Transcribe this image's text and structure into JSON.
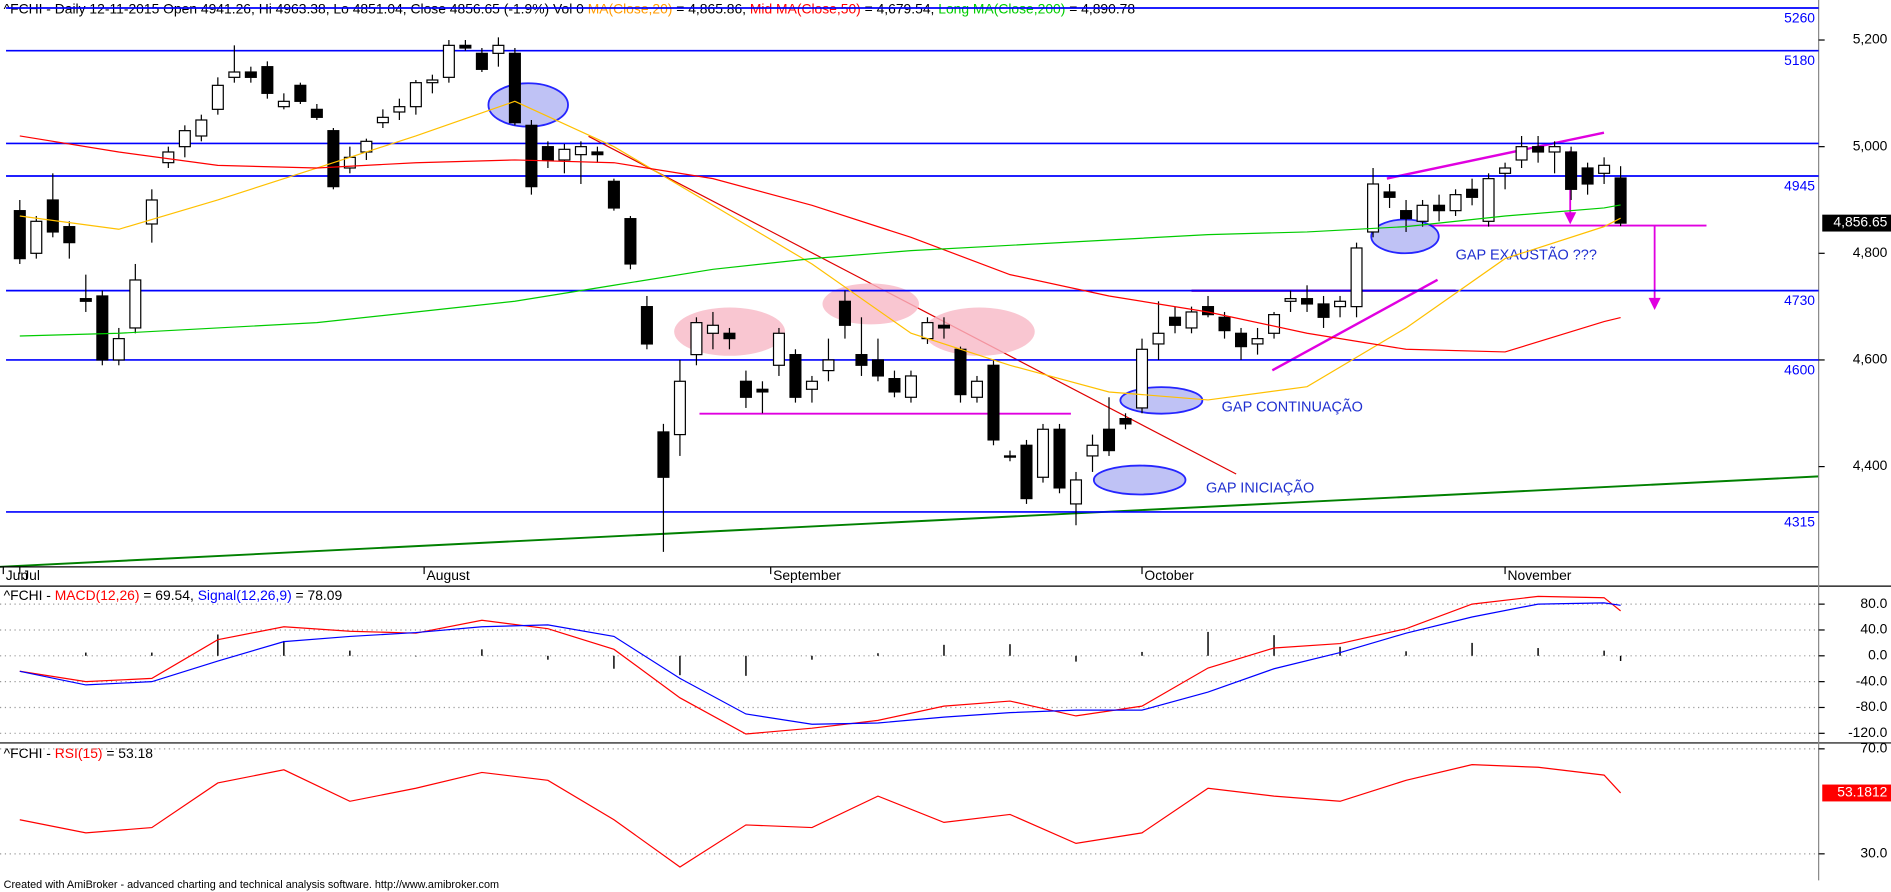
{
  "chart_data": [
    {
      "type": "candlestick",
      "title_parts": [
        {
          "text": "^FCHI - Daily 12-11-2015 Open 4941.26, Hi 4963.38, Lo 4851.04, Close 4856.65 (-1.9%) Vol 0 ",
          "color": "#000000"
        },
        {
          "text": "MA(Close,20)",
          "color": "#ff9900"
        },
        {
          "text": " = 4,865.86, ",
          "color": "#000000"
        },
        {
          "text": "Mid MA(Close,50)",
          "color": "#ff0000"
        },
        {
          "text": " = 4,679.54, ",
          "color": "#000000"
        },
        {
          "text": "Long MA(Close,200)",
          "color": "#00cc00"
        },
        {
          "text": " = 4,890.78",
          "color": "#000000"
        }
      ],
      "ohlc": [
        [
          4880,
          4900,
          4780,
          4790
        ],
        [
          4800,
          4870,
          4790,
          4860
        ],
        [
          4900,
          4950,
          4830,
          4840
        ],
        [
          4850,
          4860,
          4790,
          4820
        ],
        [
          4715,
          4760,
          4690,
          4710
        ],
        [
          4720,
          4730,
          4590,
          4600
        ],
        [
          4600,
          4660,
          4590,
          4640
        ],
        [
          4660,
          4780,
          4650,
          4750
        ],
        [
          4855,
          4920,
          4820,
          4900
        ],
        [
          4970,
          5000,
          4960,
          4990
        ],
        [
          5000,
          5040,
          4980,
          5030
        ],
        [
          5020,
          5060,
          5010,
          5050
        ],
        [
          5070,
          5130,
          5060,
          5115
        ],
        [
          5130,
          5190,
          5120,
          5140
        ],
        [
          5140,
          5150,
          5120,
          5130
        ],
        [
          5150,
          5160,
          5090,
          5100
        ],
        [
          5075,
          5100,
          5070,
          5085
        ],
        [
          5115,
          5120,
          5080,
          5085
        ],
        [
          5070,
          5080,
          5050,
          5055
        ],
        [
          5030,
          5035,
          4920,
          4925
        ],
        [
          4960,
          5000,
          4950,
          4980
        ],
        [
          4990,
          5015,
          4975,
          5010
        ],
        [
          5045,
          5070,
          5035,
          5055
        ],
        [
          5065,
          5090,
          5050,
          5075
        ],
        [
          5075,
          5125,
          5060,
          5120
        ],
        [
          5120,
          5135,
          5100,
          5125
        ],
        [
          5130,
          5200,
          5120,
          5190
        ],
        [
          5190,
          5200,
          5180,
          5185
        ],
        [
          5175,
          5185,
          5140,
          5145
        ],
        [
          5175,
          5205,
          5150,
          5190
        ],
        [
          5175,
          5185,
          5040,
          5045
        ],
        [
          5040,
          5050,
          4910,
          4925
        ],
        [
          5000,
          5010,
          4960,
          4975
        ],
        [
          4975,
          5005,
          4950,
          4995
        ],
        [
          4985,
          5010,
          4930,
          5000
        ],
        [
          4990,
          5000,
          4970,
          4985
        ],
        [
          4935,
          4940,
          4880,
          4885
        ],
        [
          4865,
          4870,
          4770,
          4780
        ],
        [
          4700,
          4720,
          4620,
          4630
        ],
        [
          4465,
          4480,
          4240,
          4380
        ],
        [
          4460,
          4600,
          4420,
          4560
        ],
        [
          4610,
          4680,
          4590,
          4670
        ],
        [
          4650,
          4690,
          4620,
          4665
        ],
        [
          4650,
          4660,
          4620,
          4640
        ],
        [
          4560,
          4580,
          4510,
          4530
        ],
        [
          4545,
          4560,
          4500,
          4540
        ],
        [
          4590,
          4660,
          4570,
          4650
        ],
        [
          4610,
          4620,
          4520,
          4530
        ],
        [
          4545,
          4570,
          4520,
          4560
        ],
        [
          4580,
          4640,
          4560,
          4600
        ],
        [
          4710,
          4730,
          4640,
          4665
        ],
        [
          4610,
          4680,
          4570,
          4590
        ],
        [
          4600,
          4640,
          4560,
          4570
        ],
        [
          4565,
          4580,
          4530,
          4540
        ],
        [
          4530,
          4580,
          4520,
          4570
        ],
        [
          4640,
          4680,
          4630,
          4670
        ],
        [
          4665,
          4680,
          4640,
          4660
        ],
        [
          4620,
          4625,
          4520,
          4535
        ],
        [
          4530,
          4570,
          4520,
          4560
        ],
        [
          4590,
          4600,
          4440,
          4450
        ],
        [
          4420,
          4430,
          4410,
          4420
        ],
        [
          4440,
          4450,
          4330,
          4340
        ],
        [
          4380,
          4480,
          4370,
          4470
        ],
        [
          4470,
          4480,
          4350,
          4360
        ],
        [
          4330,
          4390,
          4290,
          4375
        ],
        [
          4420,
          4460,
          4390,
          4440
        ],
        [
          4470,
          4530,
          4420,
          4430
        ],
        [
          4490,
          4500,
          4470,
          4480
        ],
        [
          4510,
          4640,
          4500,
          4620
        ],
        [
          4630,
          4710,
          4600,
          4650
        ],
        [
          4680,
          4700,
          4650,
          4665
        ],
        [
          4660,
          4700,
          4650,
          4690
        ],
        [
          4700,
          4720,
          4680,
          4685
        ],
        [
          4680,
          4690,
          4640,
          4655
        ],
        [
          4650,
          4660,
          4600,
          4625
        ],
        [
          4630,
          4660,
          4610,
          4640
        ],
        [
          4650,
          4690,
          4640,
          4685
        ],
        [
          4710,
          4730,
          4690,
          4715
        ],
        [
          4715,
          4740,
          4690,
          4705
        ],
        [
          4705,
          4720,
          4660,
          4680
        ],
        [
          4700,
          4720,
          4680,
          4710
        ],
        [
          4700,
          4820,
          4680,
          4810
        ],
        [
          4840,
          4960,
          4830,
          4930
        ],
        [
          4915,
          4930,
          4885,
          4905
        ],
        [
          4880,
          4900,
          4840,
          4865
        ],
        [
          4860,
          4900,
          4850,
          4890
        ],
        [
          4890,
          4910,
          4860,
          4880
        ],
        [
          4880,
          4920,
          4870,
          4910
        ],
        [
          4920,
          4940,
          4890,
          4905
        ],
        [
          4860,
          4950,
          4850,
          4940
        ],
        [
          4950,
          4970,
          4920,
          4960
        ],
        [
          4975,
          5020,
          4960,
          5000
        ],
        [
          5000,
          5020,
          4970,
          4990
        ],
        [
          4990,
          5010,
          4950,
          5000
        ],
        [
          4990,
          5000,
          4900,
          4920
        ],
        [
          4960,
          4970,
          4910,
          4930
        ],
        [
          4950,
          4980,
          4930,
          4965
        ],
        [
          4941.26,
          4963.38,
          4851.04,
          4856.65
        ]
      ],
      "up_color": "#ffffff",
      "down_color": "#000000",
      "x": [
        0,
        6,
        12,
        18,
        24,
        30,
        36,
        42,
        48,
        54,
        60,
        66,
        72,
        78,
        84,
        90,
        96,
        97
      ],
      "series": [
        {
          "color": "#ffc000",
          "values": [
            4870,
            4845,
            4900,
            4960,
            5020,
            5085,
            5000,
            4890,
            4780,
            4650,
            4590,
            4540,
            4525,
            4550,
            4660,
            4790,
            4850,
            4865.86
          ]
        },
        {
          "color": "#ff0000",
          "values": [
            5020,
            4990,
            4965,
            4960,
            4970,
            4975,
            4970,
            4940,
            4890,
            4830,
            4760,
            4720,
            4690,
            4650,
            4620,
            4615,
            4672,
            4679.54
          ]
        },
        {
          "color": "#00cc00",
          "values": [
            4645,
            4650,
            4660,
            4670,
            4690,
            4710,
            4740,
            4770,
            4790,
            4805,
            4815,
            4825,
            4835,
            4840,
            4850,
            4870,
            4885,
            4890.78
          ]
        }
      ],
      "xlim": [
        -1.2,
        109
      ],
      "ylim": [
        4212,
        5275
      ],
      "yticks": [
        {
          "value": 5200,
          "label": "5,200"
        },
        {
          "value": 5000,
          "label": "5,000"
        },
        {
          "value": 4800,
          "label": "4,800"
        },
        {
          "value": 4600,
          "label": "4,600"
        },
        {
          "value": 4400,
          "label": "4,400"
        }
      ],
      "xticks": [
        {
          "value": -1,
          "label": "Jun"
        },
        {
          "value": 0,
          "label": "Jul"
        },
        {
          "value": 24.5,
          "label": "August"
        },
        {
          "value": 45.5,
          "label": "September"
        },
        {
          "value": 68,
          "label": "October"
        },
        {
          "value": 90,
          "label": "November"
        }
      ],
      "last_label": {
        "value": 4856.65,
        "label": "4,856.65"
      },
      "levels": [
        5260,
        5180,
        4945,
        4730,
        4600,
        4315
      ],
      "extra_levels": [
        5006
      ],
      "level_color": "#0000ff",
      "annotations": [
        "GAP EXAUSTÃO ???",
        "GAP CONTINUAÇÃO",
        "GAP INICIAÇÃO"
      ],
      "grid": false
    },
    {
      "type": "line",
      "title_parts": [
        {
          "text": "^FCHI - ",
          "color": "#000000"
        },
        {
          "text": "MACD(12,26)",
          "color": "#ff0000"
        },
        {
          "text": " = 69.54, ",
          "color": "#000000"
        },
        {
          "text": "Signal(12,26,9)",
          "color": "#0000ff"
        },
        {
          "text": " = 78.09",
          "color": "#000000"
        }
      ],
      "x": [
        0,
        4,
        8,
        12,
        16,
        20,
        24,
        28,
        32,
        36,
        40,
        44,
        48,
        52,
        56,
        60,
        64,
        68,
        72,
        76,
        80,
        84,
        88,
        92,
        96,
        97
      ],
      "series": [
        {
          "color": "#ff0000",
          "values": [
            -24,
            -40,
            -35,
            25,
            45,
            38,
            35,
            55,
            42,
            10,
            -65,
            -121,
            -112,
            -100,
            -78,
            -70,
            -93,
            -78,
            -19,
            12,
            19,
            42,
            80,
            92,
            90,
            69.54
          ]
        },
        {
          "color": "#0000ff",
          "values": [
            -24,
            -45,
            -40,
            -8,
            22,
            30,
            36,
            45,
            48,
            30,
            -35,
            -90,
            -106,
            -104,
            -95,
            -88,
            -84,
            -84,
            -56,
            -20,
            5,
            35,
            60,
            80,
            82,
            78.09
          ]
        }
      ],
      "histogram": {
        "color": "#000000",
        "values": [
          0,
          5,
          5,
          33,
          23,
          8,
          -1,
          10,
          -6,
          -20,
          -30,
          -31,
          -6,
          4,
          17,
          18,
          -9,
          6,
          37,
          32,
          14,
          7,
          20,
          12,
          8,
          -8
        ]
      },
      "ylim": [
        -133,
        106
      ],
      "yticks": [
        {
          "value": 80,
          "label": "80.0"
        },
        {
          "value": 40,
          "label": "40.0"
        },
        {
          "value": 0,
          "label": "0.0"
        },
        {
          "value": -40,
          "label": "-40.0"
        },
        {
          "value": -80,
          "label": "-80.0"
        },
        {
          "value": -120,
          "label": "-120.0"
        }
      ],
      "grid": true
    },
    {
      "type": "line",
      "title_parts": [
        {
          "text": "^FCHI - ",
          "color": "#000000"
        },
        {
          "text": "RSI(15)",
          "color": "#ff0000"
        },
        {
          "text": " = 53.18",
          "color": "#000000"
        }
      ],
      "x": [
        0,
        4,
        8,
        12,
        16,
        20,
        24,
        28,
        32,
        36,
        40,
        44,
        48,
        52,
        56,
        60,
        64,
        68,
        72,
        76,
        80,
        84,
        88,
        92,
        96,
        97
      ],
      "series": [
        {
          "color": "#ff0000",
          "values": [
            43,
            38,
            40,
            57,
            62,
            50,
            55,
            61,
            58,
            43,
            25,
            41,
            40,
            52,
            42,
            45,
            34,
            38,
            55,
            52,
            50,
            58,
            64,
            63,
            60,
            53.18
          ]
        }
      ],
      "ylim": [
        20.8,
        71.8
      ],
      "yticks": [
        {
          "value": 70,
          "label": "70.0"
        },
        {
          "value": 30,
          "label": "30.0"
        }
      ],
      "last_label": {
        "value": 53.1812,
        "label": "53.1812"
      },
      "grid": true
    }
  ],
  "footer": "Created with AmiBroker - advanced charting and technical analysis software. http://www.amibroker.com"
}
